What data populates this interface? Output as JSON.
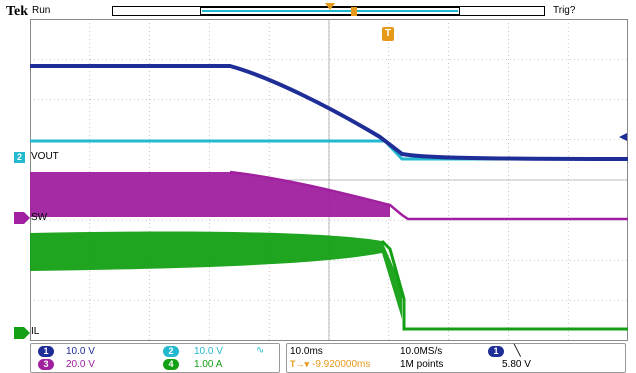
{
  "header": {
    "brand": "Tek",
    "run_state": "Run",
    "trigger_state": "Trig?"
  },
  "colors": {
    "ch1": "#1f2d96",
    "ch2": "#22b8cf",
    "ch3": "#a020a0",
    "ch4": "#14a014",
    "trigger_marker": "#e69a1a",
    "grid": "#a0a0a0"
  },
  "channel_labels": {
    "ch2_num": "2",
    "ch2_name": "VOUT",
    "ch3_name": "SW",
    "ch4_name": "IL"
  },
  "readout": {
    "ch1": {
      "num": "1",
      "scale": "10.0 V"
    },
    "ch2": {
      "num": "2",
      "scale": "10.0 V",
      "bw_icon": "bandwidth-limit-icon"
    },
    "ch3": {
      "num": "3",
      "scale": "20.0 V"
    },
    "ch4": {
      "num": "4",
      "scale": "1.00 A"
    },
    "timebase": "10.0ms",
    "delay": "-9.920000ms",
    "sample_rate": "10.0MS/s",
    "record_length": "1M points",
    "trigger": {
      "source": "1",
      "slope_icon": "falling-edge-icon",
      "level": "5.80 V"
    }
  },
  "markers": {
    "trigger_position": "T"
  }
}
